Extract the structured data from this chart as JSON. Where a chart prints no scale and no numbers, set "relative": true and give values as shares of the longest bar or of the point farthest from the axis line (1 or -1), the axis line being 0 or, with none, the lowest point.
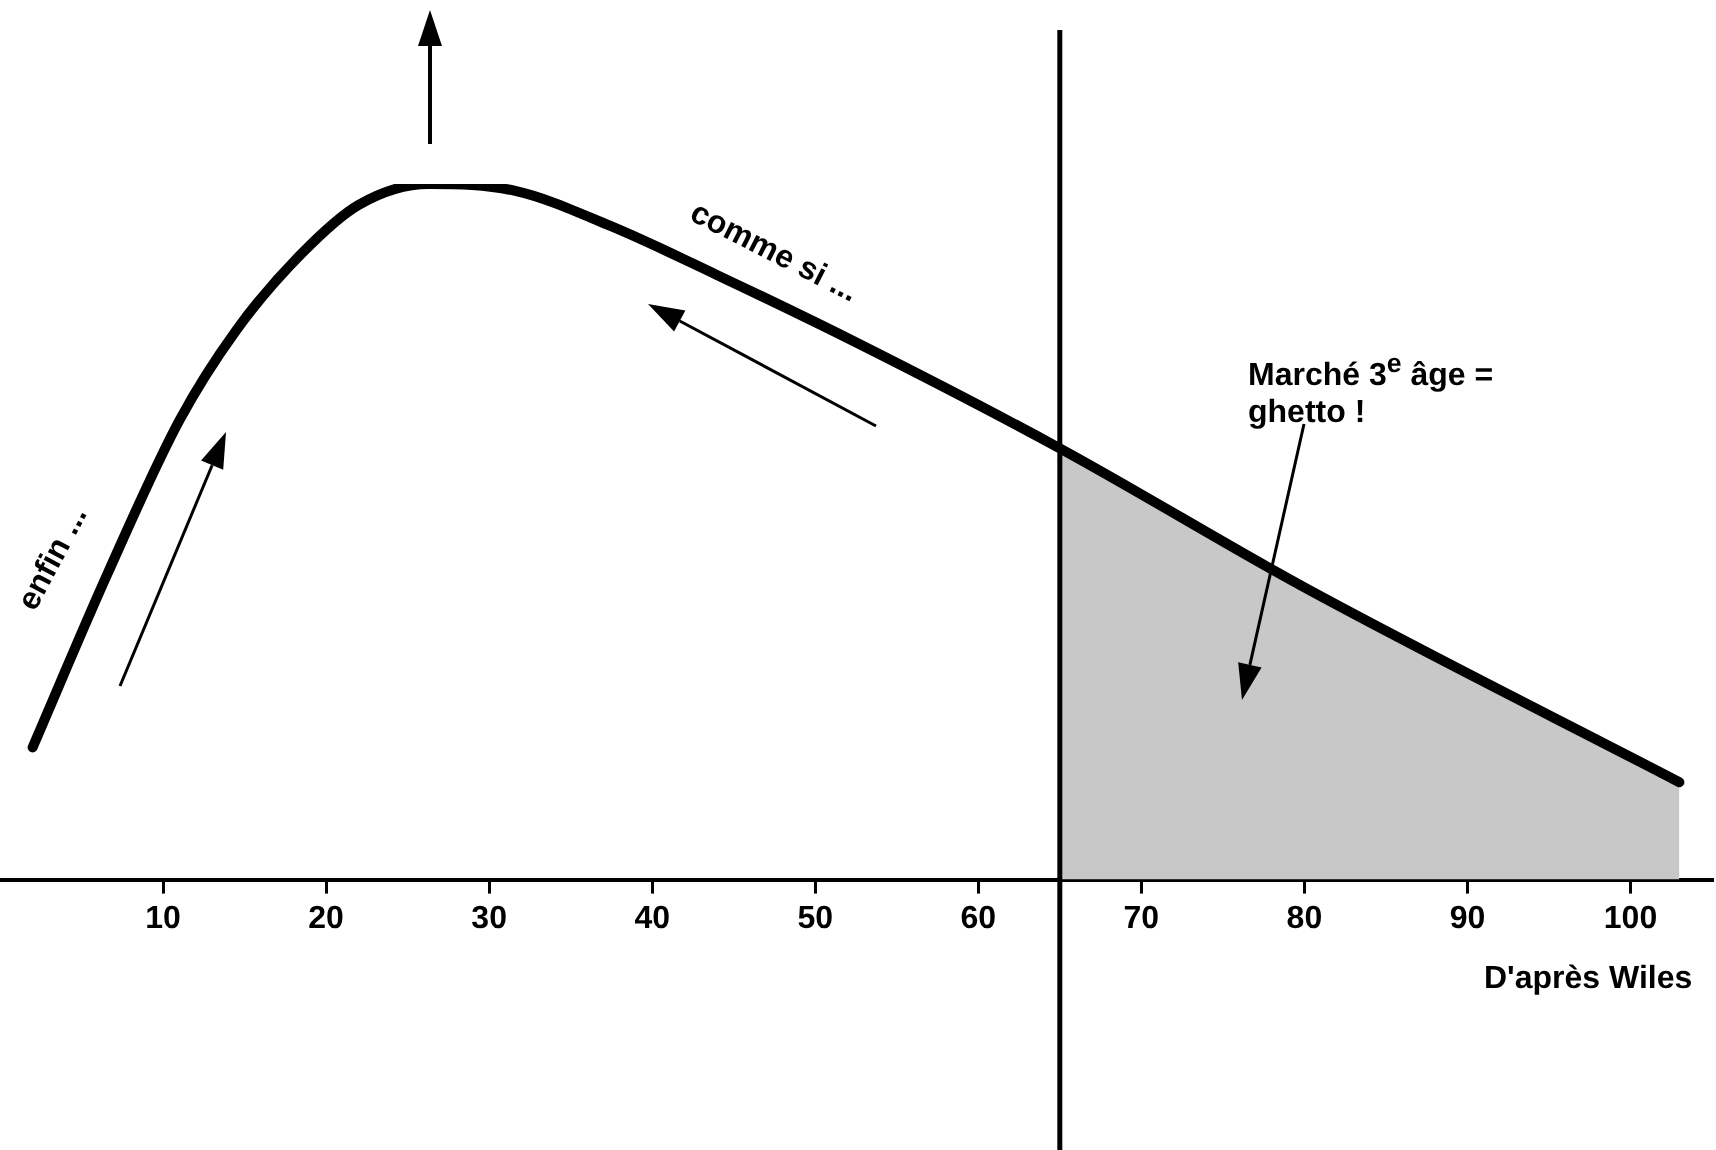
{
  "chart_data": {
    "type": "line",
    "relative": true,
    "x": [
      2,
      6.6,
      11,
      14.5,
      18.5,
      22,
      26.3,
      31.6,
      37.4,
      43.9,
      52.7,
      65,
      80,
      103
    ],
    "series": [
      {
        "type": "area",
        "color": "#c8c8c8",
        "x": [
          65,
          80,
          103
        ],
        "values": [
          0.62,
          0.42,
          0.14
        ]
      },
      {
        "color": "#000000",
        "values": [
          0.19,
          0.44,
          0.66,
          0.79,
          0.9,
          0.97,
          1,
          0.99,
          0.94,
          0.87,
          0.77,
          0.62,
          0.42,
          0.14
        ]
      }
    ],
    "xlim": [
      0,
      105
    ],
    "xticks": [
      10,
      20,
      30,
      40,
      50,
      60,
      70,
      80,
      90,
      100
    ],
    "ref_lines": [
      {
        "axis": "x",
        "value": 65,
        "color": "#000000"
      }
    ],
    "annotations": [
      "enfin ...",
      "comme si ...",
      "Marché 3$^{e}$ âge = ghetto !",
      "D'après Wiles"
    ],
    "grid": false,
    "legend": false,
    "marker": "none",
    "line_style": "solid"
  }
}
